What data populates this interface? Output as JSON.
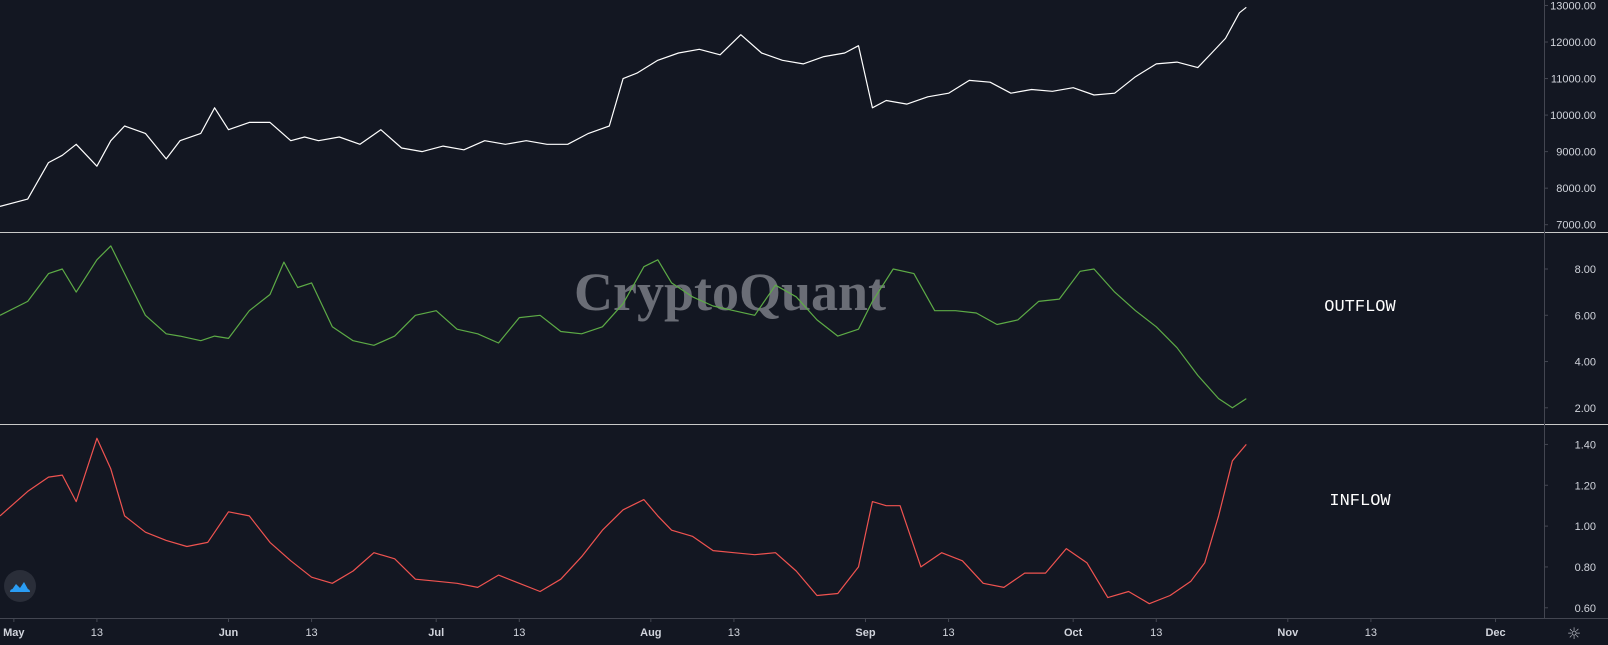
{
  "watermark": "CryptoQuant",
  "colors": {
    "background": "#131722",
    "price_line": "#ffffff",
    "outflow_line": "#5dab46",
    "inflow_line": "#ef5350",
    "separator": "#434651",
    "axis_text": "#d1d4dc"
  },
  "icons": {
    "logo": "tradingview-cloud-icon",
    "settings": "gear-icon"
  },
  "settings_glyph": "☼",
  "chart_data": [
    {
      "type": "line",
      "label": "",
      "ylim": [
        6800,
        13150
      ],
      "yticks": [
        "13000.00",
        "12000.00",
        "11000.00",
        "10000.00",
        "9000.00",
        "8000.00",
        "7000.00"
      ],
      "x": [
        "2019-04-29",
        "2019-05-03",
        "2019-05-06",
        "2019-05-08",
        "2019-05-10",
        "2019-05-13",
        "2019-05-15",
        "2019-05-17",
        "2019-05-20",
        "2019-05-23",
        "2019-05-25",
        "2019-05-28",
        "2019-05-30",
        "2019-06-01",
        "2019-06-04",
        "2019-06-07",
        "2019-06-10",
        "2019-06-12",
        "2019-06-14",
        "2019-06-17",
        "2019-06-20",
        "2019-06-23",
        "2019-06-26",
        "2019-06-29",
        "2019-07-02",
        "2019-07-05",
        "2019-07-08",
        "2019-07-11",
        "2019-07-14",
        "2019-07-17",
        "2019-07-20",
        "2019-07-23",
        "2019-07-26",
        "2019-07-28",
        "2019-07-30",
        "2019-08-02",
        "2019-08-05",
        "2019-08-08",
        "2019-08-11",
        "2019-08-14",
        "2019-08-17",
        "2019-08-20",
        "2019-08-23",
        "2019-08-26",
        "2019-08-29",
        "2019-08-31",
        "2019-09-02",
        "2019-09-04",
        "2019-09-07",
        "2019-09-10",
        "2019-09-13",
        "2019-09-16",
        "2019-09-19",
        "2019-09-22",
        "2019-09-25",
        "2019-09-28",
        "2019-10-01",
        "2019-10-04",
        "2019-10-07",
        "2019-10-10",
        "2019-10-13",
        "2019-10-16",
        "2019-10-19",
        "2019-10-21",
        "2019-10-23",
        "2019-10-25",
        "2019-10-26"
      ],
      "y": [
        7500,
        7700,
        8700,
        8900,
        9200,
        8600,
        9300,
        9700,
        9500,
        8800,
        9300,
        9500,
        10200,
        9600,
        9800,
        9800,
        9300,
        9400,
        9300,
        9400,
        9200,
        9600,
        9100,
        9000,
        9150,
        9050,
        9300,
        9200,
        9300,
        9200,
        9200,
        9500,
        9700,
        11000,
        11150,
        11500,
        11700,
        11800,
        11650,
        12200,
        11700,
        11500,
        11400,
        11600,
        11700,
        11900,
        10200,
        10400,
        10300,
        10500,
        10600,
        10950,
        10900,
        10600,
        10700,
        10650,
        10750,
        10550,
        10600,
        11050,
        11400,
        11450,
        11300,
        11700,
        12100,
        12800,
        12950
      ]
    },
    {
      "type": "line",
      "label": "OUTFLOW",
      "ylim": [
        1.3,
        9.6
      ],
      "yticks": [
        "8.00",
        "6.00",
        "4.00",
        "2.00"
      ],
      "x": [
        "2019-04-29",
        "2019-05-03",
        "2019-05-06",
        "2019-05-08",
        "2019-05-10",
        "2019-05-13",
        "2019-05-15",
        "2019-05-17",
        "2019-05-20",
        "2019-05-23",
        "2019-05-25",
        "2019-05-28",
        "2019-05-30",
        "2019-06-01",
        "2019-06-04",
        "2019-06-07",
        "2019-06-09",
        "2019-06-11",
        "2019-06-13",
        "2019-06-16",
        "2019-06-19",
        "2019-06-22",
        "2019-06-25",
        "2019-06-28",
        "2019-07-01",
        "2019-07-04",
        "2019-07-07",
        "2019-07-10",
        "2019-07-13",
        "2019-07-16",
        "2019-07-19",
        "2019-07-22",
        "2019-07-25",
        "2019-07-28",
        "2019-07-31",
        "2019-08-02",
        "2019-08-04",
        "2019-08-07",
        "2019-08-10",
        "2019-08-13",
        "2019-08-16",
        "2019-08-19",
        "2019-08-22",
        "2019-08-25",
        "2019-08-28",
        "2019-08-31",
        "2019-09-02",
        "2019-09-05",
        "2019-09-08",
        "2019-09-11",
        "2019-09-14",
        "2019-09-17",
        "2019-09-20",
        "2019-09-23",
        "2019-09-26",
        "2019-09-29",
        "2019-10-02",
        "2019-10-04",
        "2019-10-07",
        "2019-10-10",
        "2019-10-13",
        "2019-10-16",
        "2019-10-19",
        "2019-10-22",
        "2019-10-24",
        "2019-10-26"
      ],
      "y": [
        6.0,
        6.6,
        7.8,
        8.0,
        7.0,
        8.4,
        9.0,
        7.8,
        6.0,
        5.2,
        5.1,
        4.9,
        5.1,
        5.0,
        6.2,
        6.9,
        8.3,
        7.2,
        7.4,
        5.5,
        4.9,
        4.7,
        5.1,
        6.0,
        6.2,
        5.4,
        5.2,
        4.8,
        5.9,
        6.0,
        5.3,
        5.2,
        5.5,
        6.5,
        8.1,
        8.4,
        7.4,
        6.8,
        6.4,
        6.2,
        6.0,
        7.3,
        6.8,
        5.8,
        5.1,
        5.4,
        6.6,
        8.0,
        7.8,
        6.2,
        6.2,
        6.1,
        5.6,
        5.8,
        6.6,
        6.7,
        7.9,
        8.0,
        7.0,
        6.2,
        5.5,
        4.6,
        3.4,
        2.4,
        2.0,
        2.4
      ]
    },
    {
      "type": "line",
      "label": "INFLOW",
      "ylim": [
        0.55,
        1.5
      ],
      "yticks": [
        "1.40",
        "1.20",
        "1.00",
        "0.80",
        "0.60"
      ],
      "x": [
        "2019-04-29",
        "2019-05-03",
        "2019-05-06",
        "2019-05-08",
        "2019-05-10",
        "2019-05-13",
        "2019-05-15",
        "2019-05-17",
        "2019-05-20",
        "2019-05-23",
        "2019-05-26",
        "2019-05-29",
        "2019-06-01",
        "2019-06-04",
        "2019-06-07",
        "2019-06-10",
        "2019-06-13",
        "2019-06-16",
        "2019-06-19",
        "2019-06-22",
        "2019-06-25",
        "2019-06-28",
        "2019-07-01",
        "2019-07-04",
        "2019-07-07",
        "2019-07-10",
        "2019-07-13",
        "2019-07-16",
        "2019-07-19",
        "2019-07-22",
        "2019-07-25",
        "2019-07-28",
        "2019-07-31",
        "2019-08-02",
        "2019-08-04",
        "2019-08-07",
        "2019-08-10",
        "2019-08-13",
        "2019-08-16",
        "2019-08-19",
        "2019-08-22",
        "2019-08-25",
        "2019-08-28",
        "2019-08-31",
        "2019-09-02",
        "2019-09-04",
        "2019-09-06",
        "2019-09-09",
        "2019-09-12",
        "2019-09-15",
        "2019-09-18",
        "2019-09-21",
        "2019-09-24",
        "2019-09-27",
        "2019-09-30",
        "2019-10-03",
        "2019-10-06",
        "2019-10-09",
        "2019-10-12",
        "2019-10-15",
        "2019-10-18",
        "2019-10-20",
        "2019-10-22",
        "2019-10-24",
        "2019-10-26"
      ],
      "y": [
        1.05,
        1.17,
        1.24,
        1.25,
        1.12,
        1.43,
        1.28,
        1.05,
        0.97,
        0.93,
        0.9,
        0.92,
        1.07,
        1.05,
        0.92,
        0.83,
        0.75,
        0.72,
        0.78,
        0.87,
        0.84,
        0.74,
        0.73,
        0.72,
        0.7,
        0.76,
        0.72,
        0.68,
        0.74,
        0.85,
        0.98,
        1.08,
        1.13,
        1.05,
        0.98,
        0.95,
        0.88,
        0.87,
        0.86,
        0.87,
        0.78,
        0.66,
        0.67,
        0.8,
        1.12,
        1.1,
        1.1,
        0.8,
        0.87,
        0.83,
        0.72,
        0.7,
        0.77,
        0.77,
        0.89,
        0.82,
        0.65,
        0.68,
        0.62,
        0.66,
        0.73,
        0.82,
        1.05,
        1.32,
        1.4
      ]
    }
  ],
  "x_axis": {
    "range": [
      "2019-04-29",
      "2019-12-08"
    ],
    "ticks": [
      {
        "date": "2019-05-01",
        "label": "May",
        "bold": true
      },
      {
        "date": "2019-05-13",
        "label": "13",
        "bold": false
      },
      {
        "date": "2019-06-01",
        "label": "Jun",
        "bold": true
      },
      {
        "date": "2019-06-13",
        "label": "13",
        "bold": false
      },
      {
        "date": "2019-07-01",
        "label": "Jul",
        "bold": true
      },
      {
        "date": "2019-07-13",
        "label": "13",
        "bold": false
      },
      {
        "date": "2019-08-01",
        "label": "Aug",
        "bold": true
      },
      {
        "date": "2019-08-13",
        "label": "13",
        "bold": false
      },
      {
        "date": "2019-09-01",
        "label": "Sep",
        "bold": true
      },
      {
        "date": "2019-09-13",
        "label": "13",
        "bold": false
      },
      {
        "date": "2019-10-01",
        "label": "Oct",
        "bold": true
      },
      {
        "date": "2019-10-13",
        "label": "13",
        "bold": false
      },
      {
        "date": "2019-11-01",
        "label": "Nov",
        "bold": true
      },
      {
        "date": "2019-11-13",
        "label": "13",
        "bold": false
      },
      {
        "date": "2019-12-01",
        "label": "Dec",
        "bold": true
      }
    ]
  }
}
